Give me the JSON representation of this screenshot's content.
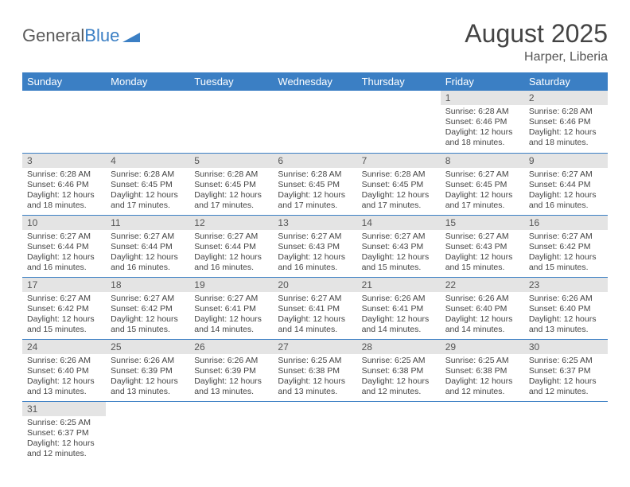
{
  "logo": {
    "text1": "General",
    "text2": "Blue"
  },
  "title": "August 2025",
  "location": "Harper, Liberia",
  "colors": {
    "header_bg": "#3b7fc4",
    "header_text": "#ffffff",
    "daynum_bg": "#e4e4e4",
    "rule": "#3b7fc4",
    "text": "#444444"
  },
  "day_headers": [
    "Sunday",
    "Monday",
    "Tuesday",
    "Wednesday",
    "Thursday",
    "Friday",
    "Saturday"
  ],
  "weeks": [
    [
      null,
      null,
      null,
      null,
      null,
      {
        "n": "1",
        "sunrise": "Sunrise: 6:28 AM",
        "sunset": "Sunset: 6:46 PM",
        "daylight": "Daylight: 12 hours and 18 minutes."
      },
      {
        "n": "2",
        "sunrise": "Sunrise: 6:28 AM",
        "sunset": "Sunset: 6:46 PM",
        "daylight": "Daylight: 12 hours and 18 minutes."
      }
    ],
    [
      {
        "n": "3",
        "sunrise": "Sunrise: 6:28 AM",
        "sunset": "Sunset: 6:46 PM",
        "daylight": "Daylight: 12 hours and 18 minutes."
      },
      {
        "n": "4",
        "sunrise": "Sunrise: 6:28 AM",
        "sunset": "Sunset: 6:45 PM",
        "daylight": "Daylight: 12 hours and 17 minutes."
      },
      {
        "n": "5",
        "sunrise": "Sunrise: 6:28 AM",
        "sunset": "Sunset: 6:45 PM",
        "daylight": "Daylight: 12 hours and 17 minutes."
      },
      {
        "n": "6",
        "sunrise": "Sunrise: 6:28 AM",
        "sunset": "Sunset: 6:45 PM",
        "daylight": "Daylight: 12 hours and 17 minutes."
      },
      {
        "n": "7",
        "sunrise": "Sunrise: 6:28 AM",
        "sunset": "Sunset: 6:45 PM",
        "daylight": "Daylight: 12 hours and 17 minutes."
      },
      {
        "n": "8",
        "sunrise": "Sunrise: 6:27 AM",
        "sunset": "Sunset: 6:45 PM",
        "daylight": "Daylight: 12 hours and 17 minutes."
      },
      {
        "n": "9",
        "sunrise": "Sunrise: 6:27 AM",
        "sunset": "Sunset: 6:44 PM",
        "daylight": "Daylight: 12 hours and 16 minutes."
      }
    ],
    [
      {
        "n": "10",
        "sunrise": "Sunrise: 6:27 AM",
        "sunset": "Sunset: 6:44 PM",
        "daylight": "Daylight: 12 hours and 16 minutes."
      },
      {
        "n": "11",
        "sunrise": "Sunrise: 6:27 AM",
        "sunset": "Sunset: 6:44 PM",
        "daylight": "Daylight: 12 hours and 16 minutes."
      },
      {
        "n": "12",
        "sunrise": "Sunrise: 6:27 AM",
        "sunset": "Sunset: 6:44 PM",
        "daylight": "Daylight: 12 hours and 16 minutes."
      },
      {
        "n": "13",
        "sunrise": "Sunrise: 6:27 AM",
        "sunset": "Sunset: 6:43 PM",
        "daylight": "Daylight: 12 hours and 16 minutes."
      },
      {
        "n": "14",
        "sunrise": "Sunrise: 6:27 AM",
        "sunset": "Sunset: 6:43 PM",
        "daylight": "Daylight: 12 hours and 15 minutes."
      },
      {
        "n": "15",
        "sunrise": "Sunrise: 6:27 AM",
        "sunset": "Sunset: 6:43 PM",
        "daylight": "Daylight: 12 hours and 15 minutes."
      },
      {
        "n": "16",
        "sunrise": "Sunrise: 6:27 AM",
        "sunset": "Sunset: 6:42 PM",
        "daylight": "Daylight: 12 hours and 15 minutes."
      }
    ],
    [
      {
        "n": "17",
        "sunrise": "Sunrise: 6:27 AM",
        "sunset": "Sunset: 6:42 PM",
        "daylight": "Daylight: 12 hours and 15 minutes."
      },
      {
        "n": "18",
        "sunrise": "Sunrise: 6:27 AM",
        "sunset": "Sunset: 6:42 PM",
        "daylight": "Daylight: 12 hours and 15 minutes."
      },
      {
        "n": "19",
        "sunrise": "Sunrise: 6:27 AM",
        "sunset": "Sunset: 6:41 PM",
        "daylight": "Daylight: 12 hours and 14 minutes."
      },
      {
        "n": "20",
        "sunrise": "Sunrise: 6:27 AM",
        "sunset": "Sunset: 6:41 PM",
        "daylight": "Daylight: 12 hours and 14 minutes."
      },
      {
        "n": "21",
        "sunrise": "Sunrise: 6:26 AM",
        "sunset": "Sunset: 6:41 PM",
        "daylight": "Daylight: 12 hours and 14 minutes."
      },
      {
        "n": "22",
        "sunrise": "Sunrise: 6:26 AM",
        "sunset": "Sunset: 6:40 PM",
        "daylight": "Daylight: 12 hours and 14 minutes."
      },
      {
        "n": "23",
        "sunrise": "Sunrise: 6:26 AM",
        "sunset": "Sunset: 6:40 PM",
        "daylight": "Daylight: 12 hours and 13 minutes."
      }
    ],
    [
      {
        "n": "24",
        "sunrise": "Sunrise: 6:26 AM",
        "sunset": "Sunset: 6:40 PM",
        "daylight": "Daylight: 12 hours and 13 minutes."
      },
      {
        "n": "25",
        "sunrise": "Sunrise: 6:26 AM",
        "sunset": "Sunset: 6:39 PM",
        "daylight": "Daylight: 12 hours and 13 minutes."
      },
      {
        "n": "26",
        "sunrise": "Sunrise: 6:26 AM",
        "sunset": "Sunset: 6:39 PM",
        "daylight": "Daylight: 12 hours and 13 minutes."
      },
      {
        "n": "27",
        "sunrise": "Sunrise: 6:25 AM",
        "sunset": "Sunset: 6:38 PM",
        "daylight": "Daylight: 12 hours and 13 minutes."
      },
      {
        "n": "28",
        "sunrise": "Sunrise: 6:25 AM",
        "sunset": "Sunset: 6:38 PM",
        "daylight": "Daylight: 12 hours and 12 minutes."
      },
      {
        "n": "29",
        "sunrise": "Sunrise: 6:25 AM",
        "sunset": "Sunset: 6:38 PM",
        "daylight": "Daylight: 12 hours and 12 minutes."
      },
      {
        "n": "30",
        "sunrise": "Sunrise: 6:25 AM",
        "sunset": "Sunset: 6:37 PM",
        "daylight": "Daylight: 12 hours and 12 minutes."
      }
    ],
    [
      {
        "n": "31",
        "sunrise": "Sunrise: 6:25 AM",
        "sunset": "Sunset: 6:37 PM",
        "daylight": "Daylight: 12 hours and 12 minutes."
      },
      null,
      null,
      null,
      null,
      null,
      null
    ]
  ]
}
